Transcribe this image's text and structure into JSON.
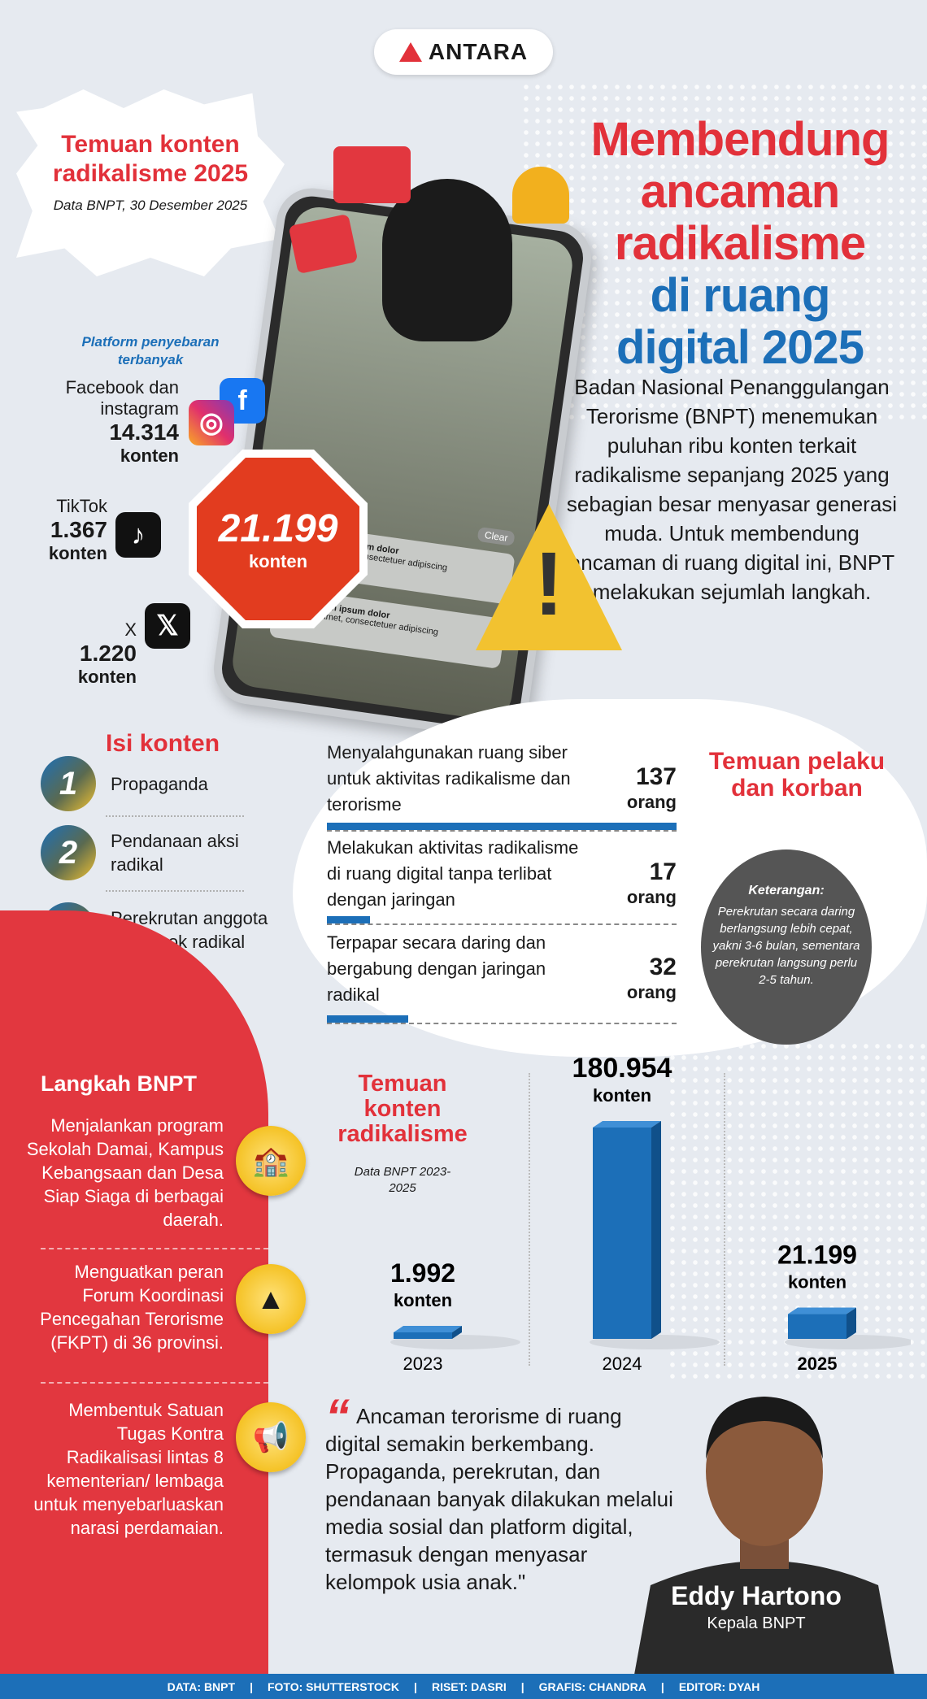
{
  "logo": {
    "text": "ANTARA"
  },
  "header": {
    "burst_title": "Temuan konten radikalisme 2025",
    "burst_source": "Data BNPT, 30 Desember 2025",
    "title_red": [
      "Membendung",
      "ancaman",
      "radikalisme"
    ],
    "title_blue": [
      "di ruang",
      "digital 2025"
    ],
    "intro": "Badan Nasional Penanggulangan Terorisme (BNPT) menemukan puluhan ribu konten terkait radikalisme sepanjang 2025 yang sebagian besar menyasar generasi muda. Untuk membendung ancaman di ruang digital ini, BNPT melakukan sejumlah langkah."
  },
  "platforms": {
    "label": "Platform penyebaran terbanyak",
    "items": [
      {
        "name": "Facebook dan instagram",
        "value": "14.314",
        "unit": "konten",
        "icons": [
          "facebook-icon",
          "instagram-icon"
        ]
      },
      {
        "name": "TikTok",
        "value": "1.367",
        "unit": "konten",
        "icons": [
          "tiktok-icon"
        ]
      },
      {
        "name": "X",
        "value": "1.220",
        "unit": "konten",
        "icons": [
          "x-icon"
        ]
      }
    ],
    "total": {
      "value": "21.199",
      "unit": "konten"
    }
  },
  "phone_screen": {
    "clear": "Clear",
    "notif_title": "Lorem ipsum dolor",
    "notif_body": "Sit amet, consectetuer adipiscing"
  },
  "isi_konten": {
    "title": "Isi konten",
    "items": [
      {
        "num": "1",
        "label": "Propaganda"
      },
      {
        "num": "2",
        "label": "Pendanaan aksi radikal"
      },
      {
        "num": "3",
        "label": "Perekrutan anggota kelompok radikal"
      }
    ]
  },
  "pelaku": {
    "title": "Temuan pelaku dan korban",
    "rows": [
      {
        "label": "Menyalahgunakan ruang siber untuk aktivitas radikalisme dan terorisme",
        "value": 137,
        "unit": "orang"
      },
      {
        "label": "Melakukan aktivitas radikalisme di ruang digital tanpa terlibat dengan jaringan",
        "value": 17,
        "unit": "orang"
      },
      {
        "label": "Terpapar secara daring dan bergabung dengan jaringan radikal",
        "value": 32,
        "unit": "orang"
      }
    ],
    "note_title": "Keterangan:",
    "note_body": "Perekrutan secara daring berlangsung lebih cepat, yakni 3-6 bulan, sementara perekrutan langsung perlu 2-5 tahun."
  },
  "langkah": {
    "title": "Langkah BNPT",
    "items": [
      "Menjalankan program Sekolah Damai, Kampus Kebangsaan dan Desa Siap Siaga di berbagai daerah.",
      "Menguatkan peran Forum Koordinasi Pencegahan Terorisme (FKPT) di 36 provinsi.",
      "Membentuk Satuan Tugas Kontra Radikalisasi lintas 8 kementerian/ lembaga untuk menyebarluaskan narasi perdamaian."
    ]
  },
  "chart_data": {
    "type": "bar",
    "title": "Temuan konten radikalisme",
    "subtitle": "Data BNPT 2023-2025",
    "categories": [
      "2023",
      "2024",
      "2025"
    ],
    "values": [
      1992,
      180954,
      21199
    ],
    "value_labels": [
      "1.992",
      "180.954",
      "21.199"
    ],
    "unit": "konten",
    "bar_color": "#1c6fb8"
  },
  "quote": {
    "text": "Ancaman terorisme di ruang digital semakin berkembang. Propaganda, perekrutan, dan pendanaan banyak dilakukan melalui media sosial dan platform digital, termasuk dengan menyasar kelompok usia anak.\"",
    "name": "Eddy Hartono",
    "role": "Kepala BNPT"
  },
  "footer": [
    "DATA: BNPT",
    "FOTO: SHUTTERSTOCK",
    "RISET: DASRI",
    "GRAFIS: CHANDRA",
    "EDITOR: DYAH"
  ],
  "colors": {
    "red": "#e2313a",
    "blue": "#1c6fb8",
    "yellow": "#f1c232"
  }
}
